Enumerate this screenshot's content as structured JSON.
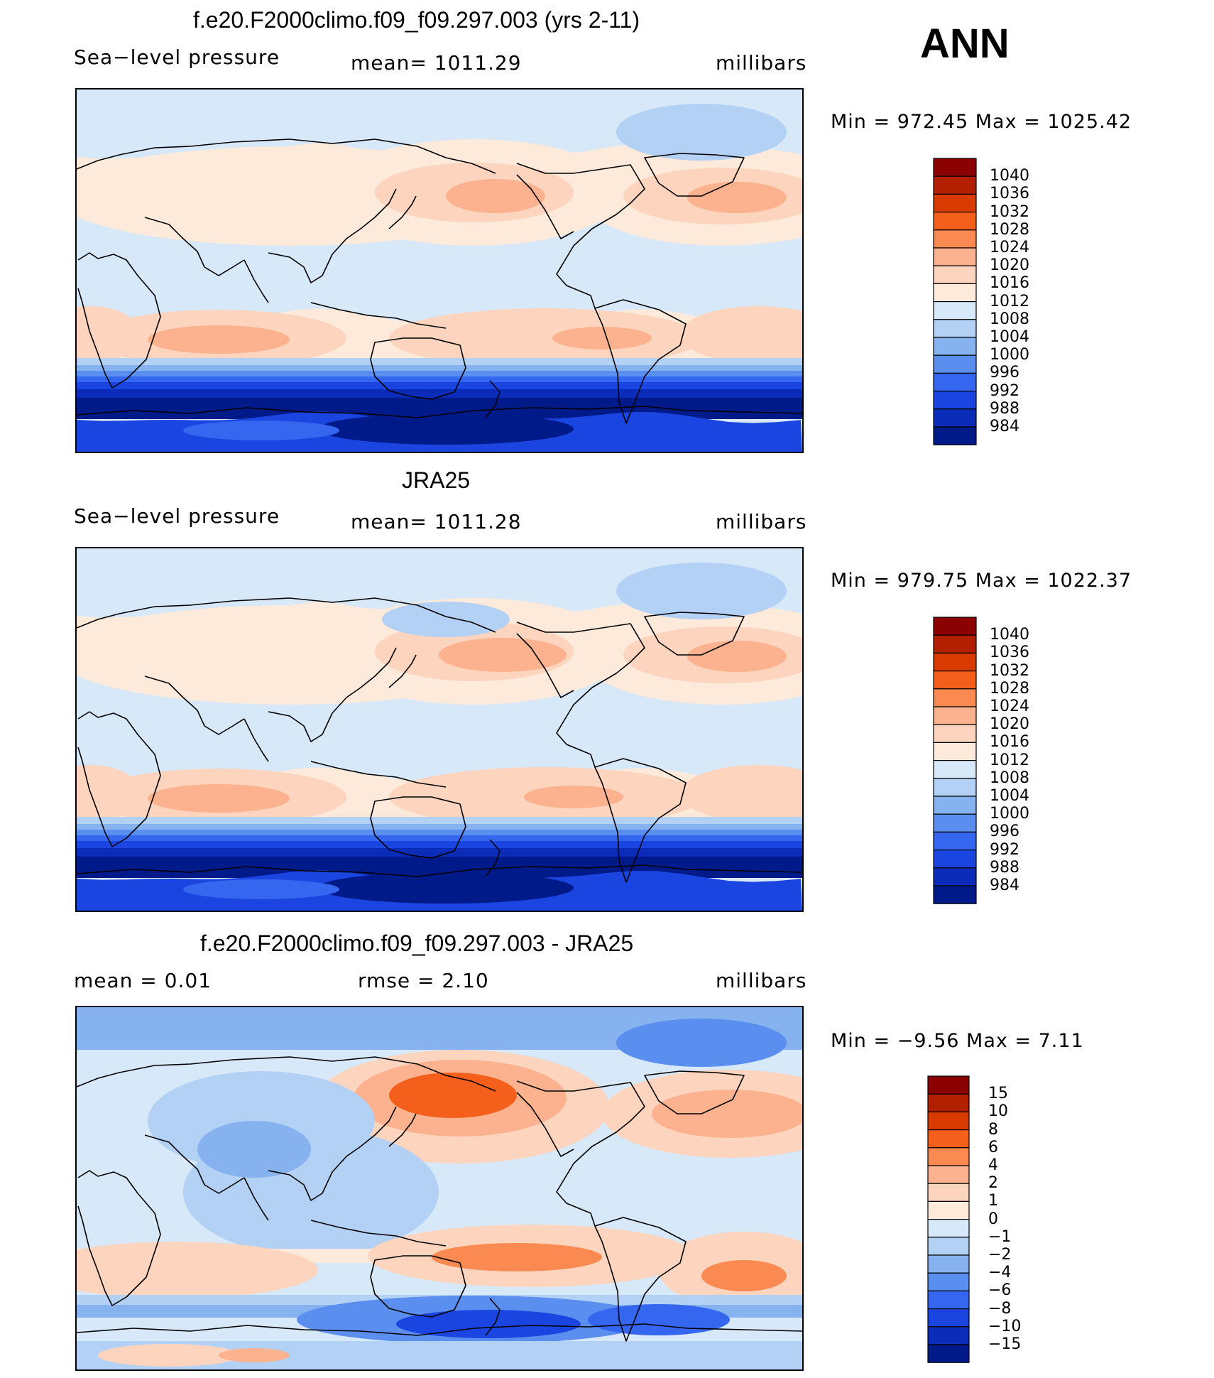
{
  "season": "ANN",
  "panels": [
    {
      "title": "f.e20.F2000climo.f09_f09.297.003 (yrs 2-11)",
      "left_label": "Sea−level pressure",
      "center_label": "mean=  1011.29",
      "right_label": "millibars",
      "minmax": "Min  =  972.45  Max  =  1025.42",
      "colorbar_labels": [
        "1040",
        "1036",
        "1032",
        "1028",
        "1024",
        "1020",
        "1016",
        "1012",
        "1008",
        "1004",
        "1000",
        "996",
        "992",
        "988",
        "984"
      ]
    },
    {
      "title": "JRA25",
      "left_label": "Sea−level pressure",
      "center_label": "mean=  1011.28",
      "right_label": "millibars",
      "minmax": "Min  =  979.75  Max  =  1022.37",
      "colorbar_labels": [
        "1040",
        "1036",
        "1032",
        "1028",
        "1024",
        "1020",
        "1016",
        "1012",
        "1008",
        "1004",
        "1000",
        "996",
        "992",
        "988",
        "984"
      ]
    },
    {
      "title": "f.e20.F2000climo.f09_f09.297.003 - JRA25",
      "left_label": "mean  =      0.01",
      "center_label": "rmse  =      2.10",
      "right_label": "millibars",
      "minmax": "Min  =    −9.56  Max  =      7.11",
      "colorbar_labels": [
        "15",
        "10",
        "8",
        "6",
        "4",
        "2",
        "1",
        "0",
        "−1",
        "−2",
        "−4",
        "−6",
        "−8",
        "−10",
        "−15"
      ]
    }
  ],
  "colors": {
    "abs_scale": [
      "#8b0000",
      "#b22000",
      "#d93a00",
      "#f4601c",
      "#fb8a52",
      "#fcb28f",
      "#fdd4bd",
      "#fdeadb",
      "#d7e8f8",
      "#b3d1f4",
      "#86b2f0",
      "#5a8ff0",
      "#3466f0",
      "#1a45e0",
      "#0b2cb8",
      "#001a8a"
    ],
    "diff_scale": [
      "#8b0000",
      "#b22000",
      "#d93a00",
      "#f4601c",
      "#fb8a52",
      "#fcb28f",
      "#fdd4bd",
      "#fdeadb",
      "#d7e8f8",
      "#b3d1f4",
      "#86b2f0",
      "#5a8ff0",
      "#3466f0",
      "#1a45e0",
      "#0b2cb8",
      "#001a8a"
    ]
  },
  "chart_data": [
    {
      "type": "heatmap",
      "title": "f.e20.F2000climo.f09_f09.297.003 (yrs 2-11)",
      "field": "Sea−level pressure",
      "units": "millibars",
      "mean": 1011.29,
      "min": 972.45,
      "max": 1025.42,
      "contour_levels": [
        984,
        988,
        992,
        996,
        1000,
        1004,
        1008,
        1012,
        1016,
        1020,
        1024,
        1028,
        1032,
        1036,
        1040
      ]
    },
    {
      "type": "heatmap",
      "title": "JRA25",
      "field": "Sea−level pressure",
      "units": "millibars",
      "mean": 1011.28,
      "min": 979.75,
      "max": 1022.37,
      "contour_levels": [
        984,
        988,
        992,
        996,
        1000,
        1004,
        1008,
        1012,
        1016,
        1020,
        1024,
        1028,
        1032,
        1036,
        1040
      ]
    },
    {
      "type": "heatmap",
      "title": "f.e20.F2000climo.f09_f09.297.003 - JRA25",
      "units": "millibars",
      "mean": 0.01,
      "rmse": 2.1,
      "min": -9.56,
      "max": 7.11,
      "contour_levels": [
        -15,
        -10,
        -8,
        -6,
        -4,
        -2,
        -1,
        0,
        1,
        2,
        4,
        6,
        8,
        10,
        15
      ]
    }
  ]
}
